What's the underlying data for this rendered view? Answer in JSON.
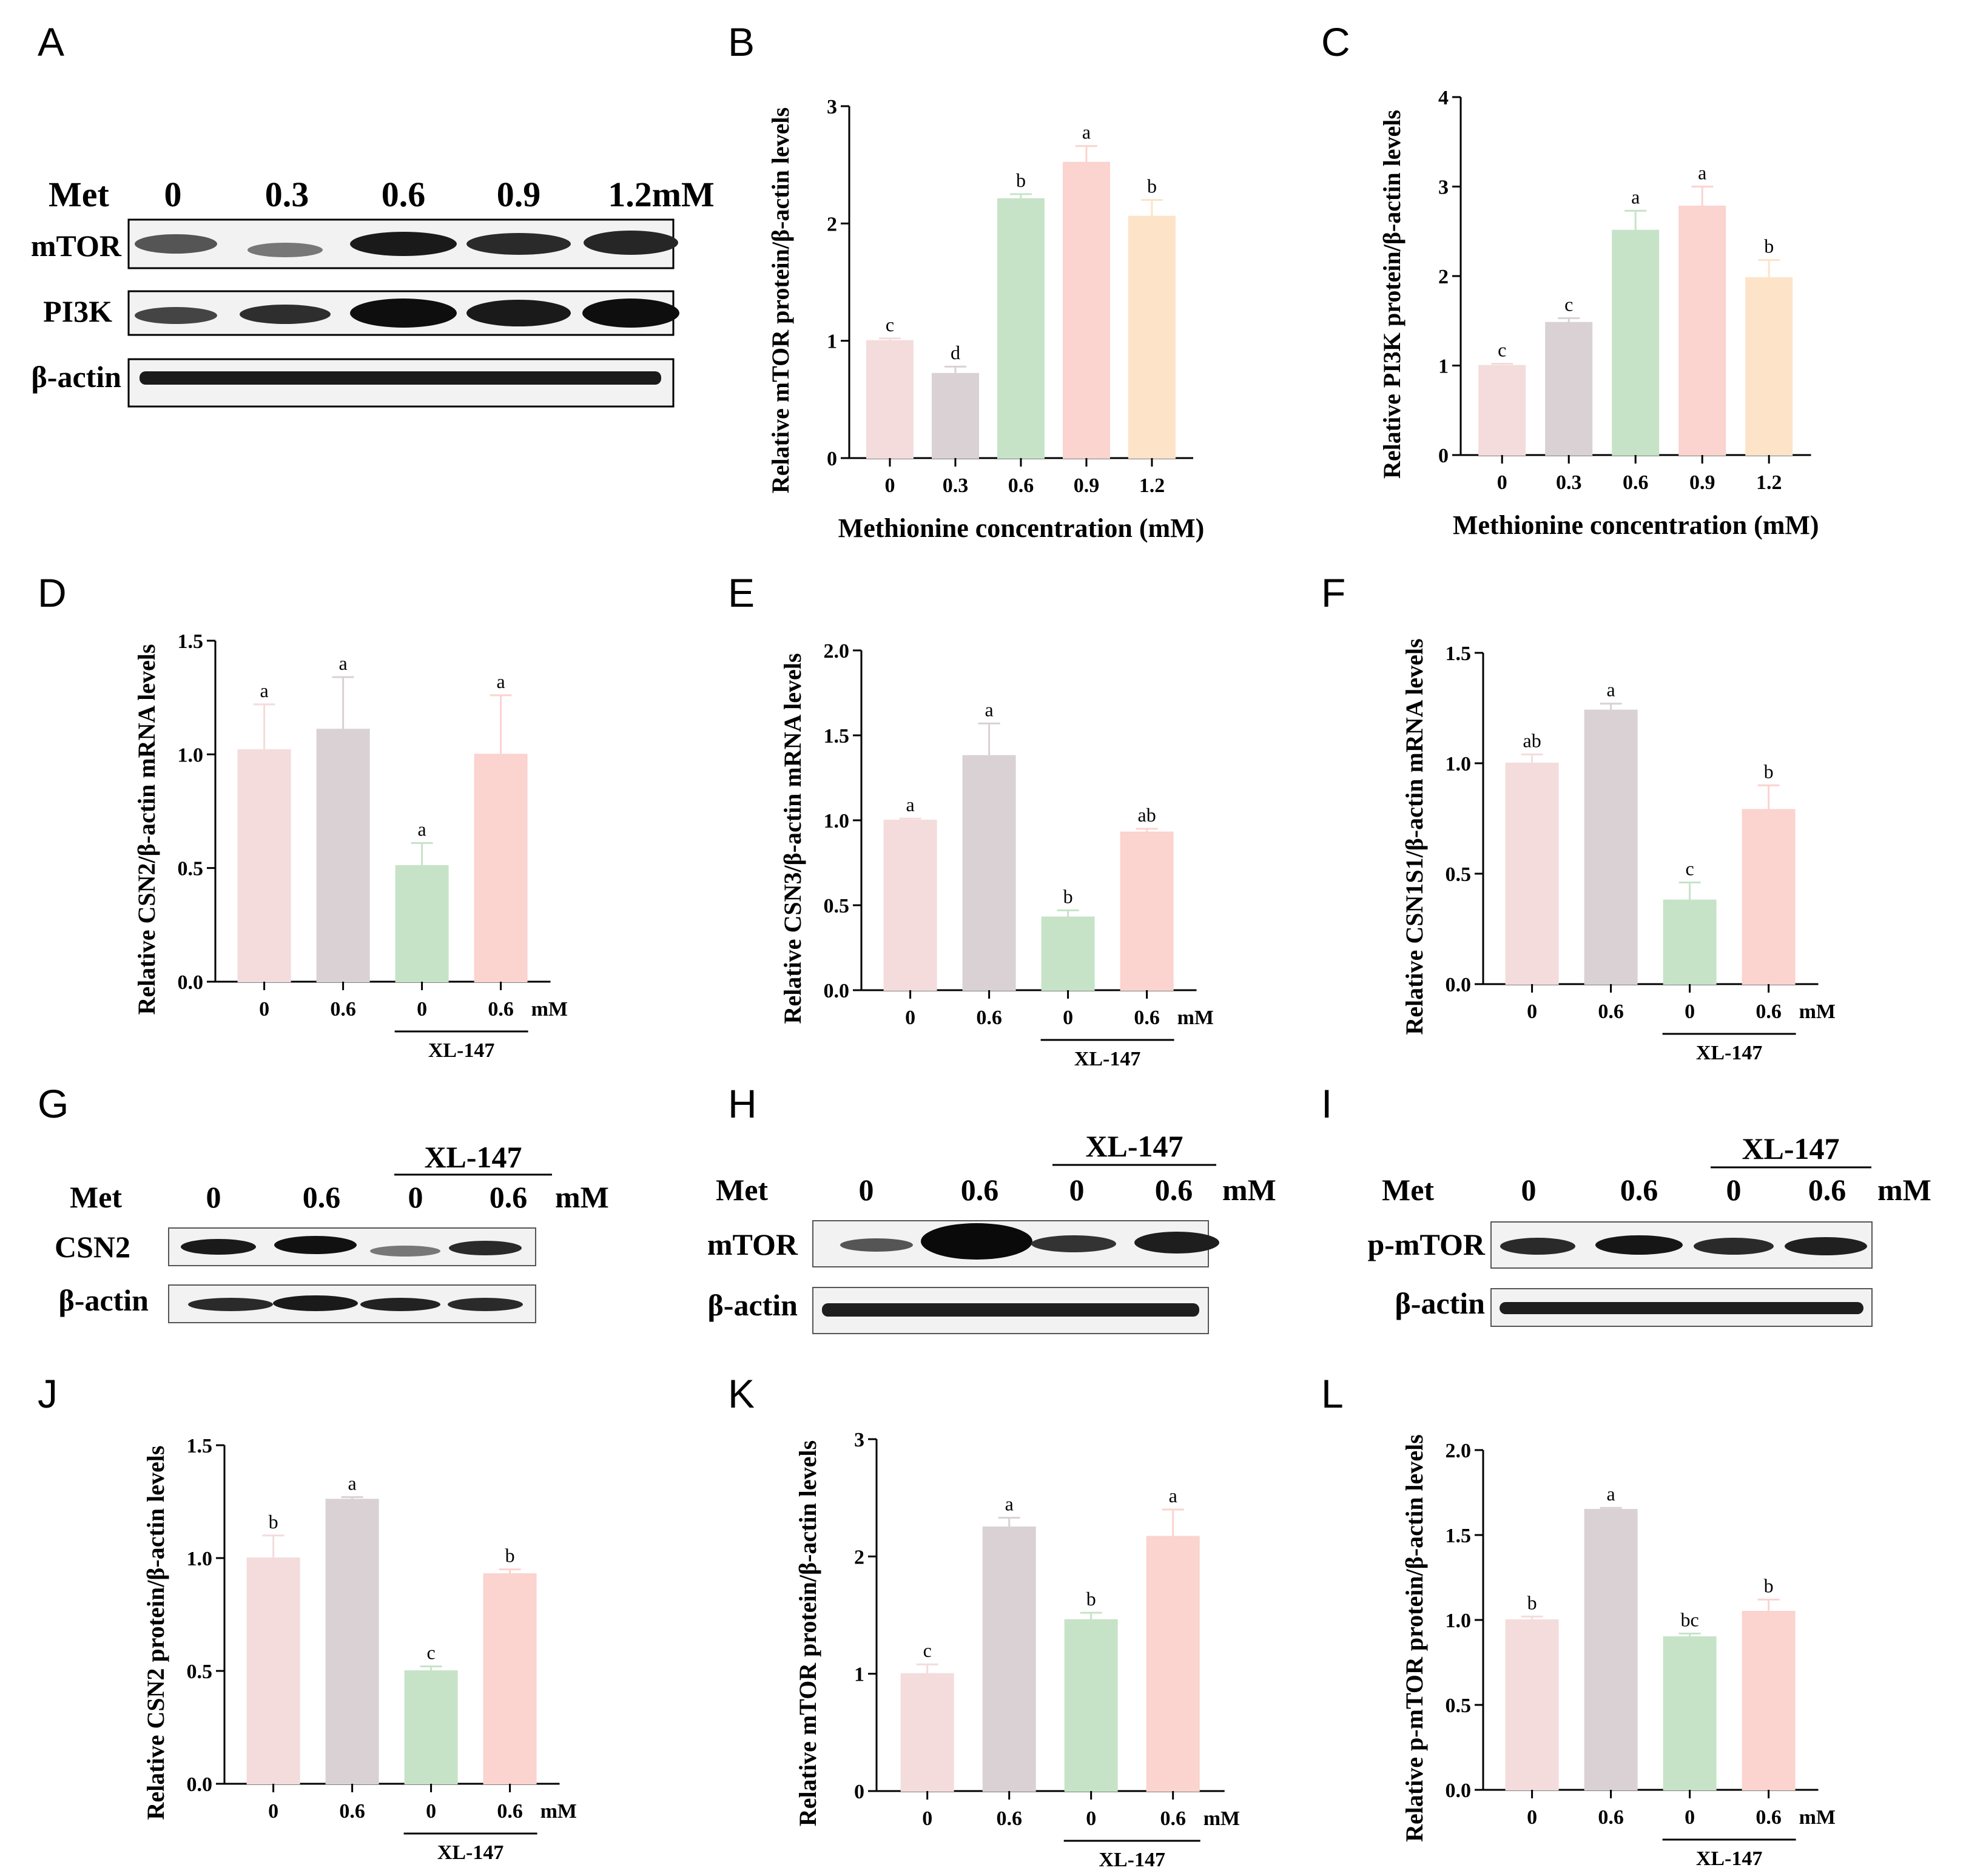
{
  "colors": {
    "c0": "#f4dcdc",
    "c1": "#d9d1d3",
    "c2": "#c6e3c8",
    "c3": "#fbd3cf",
    "c4": "#fde3c8",
    "blot_band": "#1a1a1a",
    "blot_bg": "#f2f2f2"
  },
  "panels": {
    "A": "A",
    "B": "B",
    "C": "C",
    "D": "D",
    "E": "E",
    "F": "F",
    "G": "G",
    "H": "H",
    "I": "I",
    "J": "J",
    "K": "K",
    "L": "L"
  },
  "blots": {
    "A": {
      "row_label": "Met",
      "lanes": [
        "0",
        "0.3",
        "0.6",
        "0.9",
        "1.2mM"
      ],
      "rows": [
        "mTOR",
        "PI3K",
        "β-actin"
      ]
    },
    "G": {
      "row_label": "Met",
      "group_label": "XL-147",
      "lanes": [
        "0",
        "0.6",
        "0",
        "0.6"
      ],
      "unit": "mM",
      "rows": [
        "CSN2",
        "β-actin"
      ]
    },
    "H": {
      "row_label": "Met",
      "group_label": "XL-147",
      "lanes": [
        "0",
        "0.6",
        "0",
        "0.6"
      ],
      "unit": "mM",
      "rows": [
        "mTOR",
        "β-actin"
      ]
    },
    "I": {
      "row_label": "Met",
      "group_label": "XL-147",
      "lanes": [
        "0",
        "0.6",
        "0",
        "0.6"
      ],
      "unit": "mM",
      "rows": [
        "p-mTOR",
        "β-actin"
      ]
    }
  },
  "chart_data": [
    {
      "panel": "B",
      "type": "bar",
      "categories": [
        "0",
        "0.3",
        "0.6",
        "0.9",
        "1.2"
      ],
      "values": [
        1.0,
        0.72,
        2.21,
        2.52,
        2.06
      ],
      "errors": [
        0.02,
        0.06,
        0.04,
        0.14,
        0.14
      ],
      "significance": [
        "c",
        "d",
        "b",
        "a",
        "b"
      ],
      "colors": [
        "c0",
        "c1",
        "c2",
        "c3",
        "c4"
      ],
      "ylim": [
        0,
        3
      ],
      "yticks": [
        "0",
        "1",
        "2",
        "3"
      ],
      "ylabel": "Relative mTOR protein/β-actin levels",
      "xlabel": "Methionine concentration (mM)"
    },
    {
      "panel": "C",
      "type": "bar",
      "categories": [
        "0",
        "0.3",
        "0.6",
        "0.9",
        "1.2"
      ],
      "values": [
        1.0,
        1.48,
        2.51,
        2.78,
        1.98
      ],
      "errors": [
        0.02,
        0.05,
        0.22,
        0.22,
        0.2
      ],
      "significance": [
        "c",
        "c",
        "a",
        "a",
        "b"
      ],
      "colors": [
        "c0",
        "c1",
        "c2",
        "c3",
        "c4"
      ],
      "ylim": [
        0,
        4
      ],
      "yticks": [
        "0",
        "1",
        "2",
        "3",
        "4"
      ],
      "ylabel": "Relative PI3K protein/β-actin levels",
      "xlabel": "Methionine concentration (mM)"
    },
    {
      "panel": "D",
      "type": "bar",
      "categories": [
        "0",
        "0.6",
        "0",
        "0.6"
      ],
      "values": [
        1.02,
        1.11,
        0.51,
        1.0
      ],
      "errors": [
        0.2,
        0.23,
        0.1,
        0.26
      ],
      "significance": [
        "a",
        "a",
        "a",
        "a"
      ],
      "colors": [
        "c0",
        "c1",
        "c2",
        "c3"
      ],
      "ylim": [
        0,
        1.5
      ],
      "yticks": [
        "0.0",
        "0.5",
        "1.0",
        "1.5"
      ],
      "ylabel": "Relative CSN2/β-actin mRNA levels",
      "unit": "mM",
      "group_label": "XL-147"
    },
    {
      "panel": "E",
      "type": "bar",
      "categories": [
        "0",
        "0.6",
        "0",
        "0.6"
      ],
      "values": [
        1.0,
        1.38,
        0.43,
        0.93
      ],
      "errors": [
        0.01,
        0.19,
        0.04,
        0.02
      ],
      "significance": [
        "a",
        "a",
        "b",
        "ab"
      ],
      "colors": [
        "c0",
        "c1",
        "c2",
        "c3"
      ],
      "ylim": [
        0,
        2.0
      ],
      "yticks": [
        "0.0",
        "0.5",
        "1.0",
        "1.5",
        "2.0"
      ],
      "ylabel": "Relative CSN3/β-actin mRNA levels",
      "unit": "mM",
      "group_label": "XL-147"
    },
    {
      "panel": "F",
      "type": "bar",
      "categories": [
        "0",
        "0.6",
        "0",
        "0.6"
      ],
      "values": [
        1.0,
        1.24,
        0.38,
        0.79
      ],
      "errors": [
        0.04,
        0.03,
        0.08,
        0.11
      ],
      "significance": [
        "ab",
        "a",
        "c",
        "b"
      ],
      "colors": [
        "c0",
        "c1",
        "c2",
        "c3"
      ],
      "ylim": [
        0,
        1.5
      ],
      "yticks": [
        "0.0",
        "0.5",
        "1.0",
        "1.5"
      ],
      "ylabel": "Relative CSN1S1/β-actin mRNA levels",
      "unit": "mM",
      "group_label": "XL-147"
    },
    {
      "panel": "J",
      "type": "bar",
      "categories": [
        "0",
        "0.6",
        "0",
        "0.6"
      ],
      "values": [
        1.0,
        1.26,
        0.5,
        0.93
      ],
      "errors": [
        0.1,
        0.01,
        0.02,
        0.02
      ],
      "significance": [
        "b",
        "a",
        "c",
        "b"
      ],
      "colors": [
        "c0",
        "c1",
        "c2",
        "c3"
      ],
      "ylim": [
        0,
        1.5
      ],
      "yticks": [
        "0.0",
        "0.5",
        "1.0",
        "1.5"
      ],
      "ylabel": "Relative CSN2 protein/β-actin levels",
      "unit": "mM",
      "group_label": "XL-147"
    },
    {
      "panel": "K",
      "type": "bar",
      "categories": [
        "0",
        "0.6",
        "0",
        "0.6"
      ],
      "values": [
        1.0,
        2.25,
        1.46,
        2.17
      ],
      "errors": [
        0.08,
        0.08,
        0.06,
        0.23
      ],
      "significance": [
        "c",
        "a",
        "b",
        "a"
      ],
      "colors": [
        "c0",
        "c1",
        "c2",
        "c3"
      ],
      "ylim": [
        0,
        3
      ],
      "yticks": [
        "0",
        "1",
        "2",
        "3"
      ],
      "ylabel": "Relative mTOR protein/β-actin levels",
      "unit": "mM",
      "group_label": "XL-147"
    },
    {
      "panel": "L",
      "type": "bar",
      "categories": [
        "0",
        "0.6",
        "0",
        "0.6"
      ],
      "values": [
        1.0,
        1.65,
        0.9,
        1.05
      ],
      "errors": [
        0.02,
        0.01,
        0.02,
        0.07
      ],
      "significance": [
        "b",
        "a",
        "bc",
        "b"
      ],
      "colors": [
        "c0",
        "c1",
        "c2",
        "c3"
      ],
      "ylim": [
        0,
        2.0
      ],
      "yticks": [
        "0.0",
        "0.5",
        "1.0",
        "1.5",
        "2.0"
      ],
      "ylabel": "Relative p-mTOR protein/β-actin levels",
      "unit": "mM",
      "group_label": "XL-147"
    }
  ]
}
